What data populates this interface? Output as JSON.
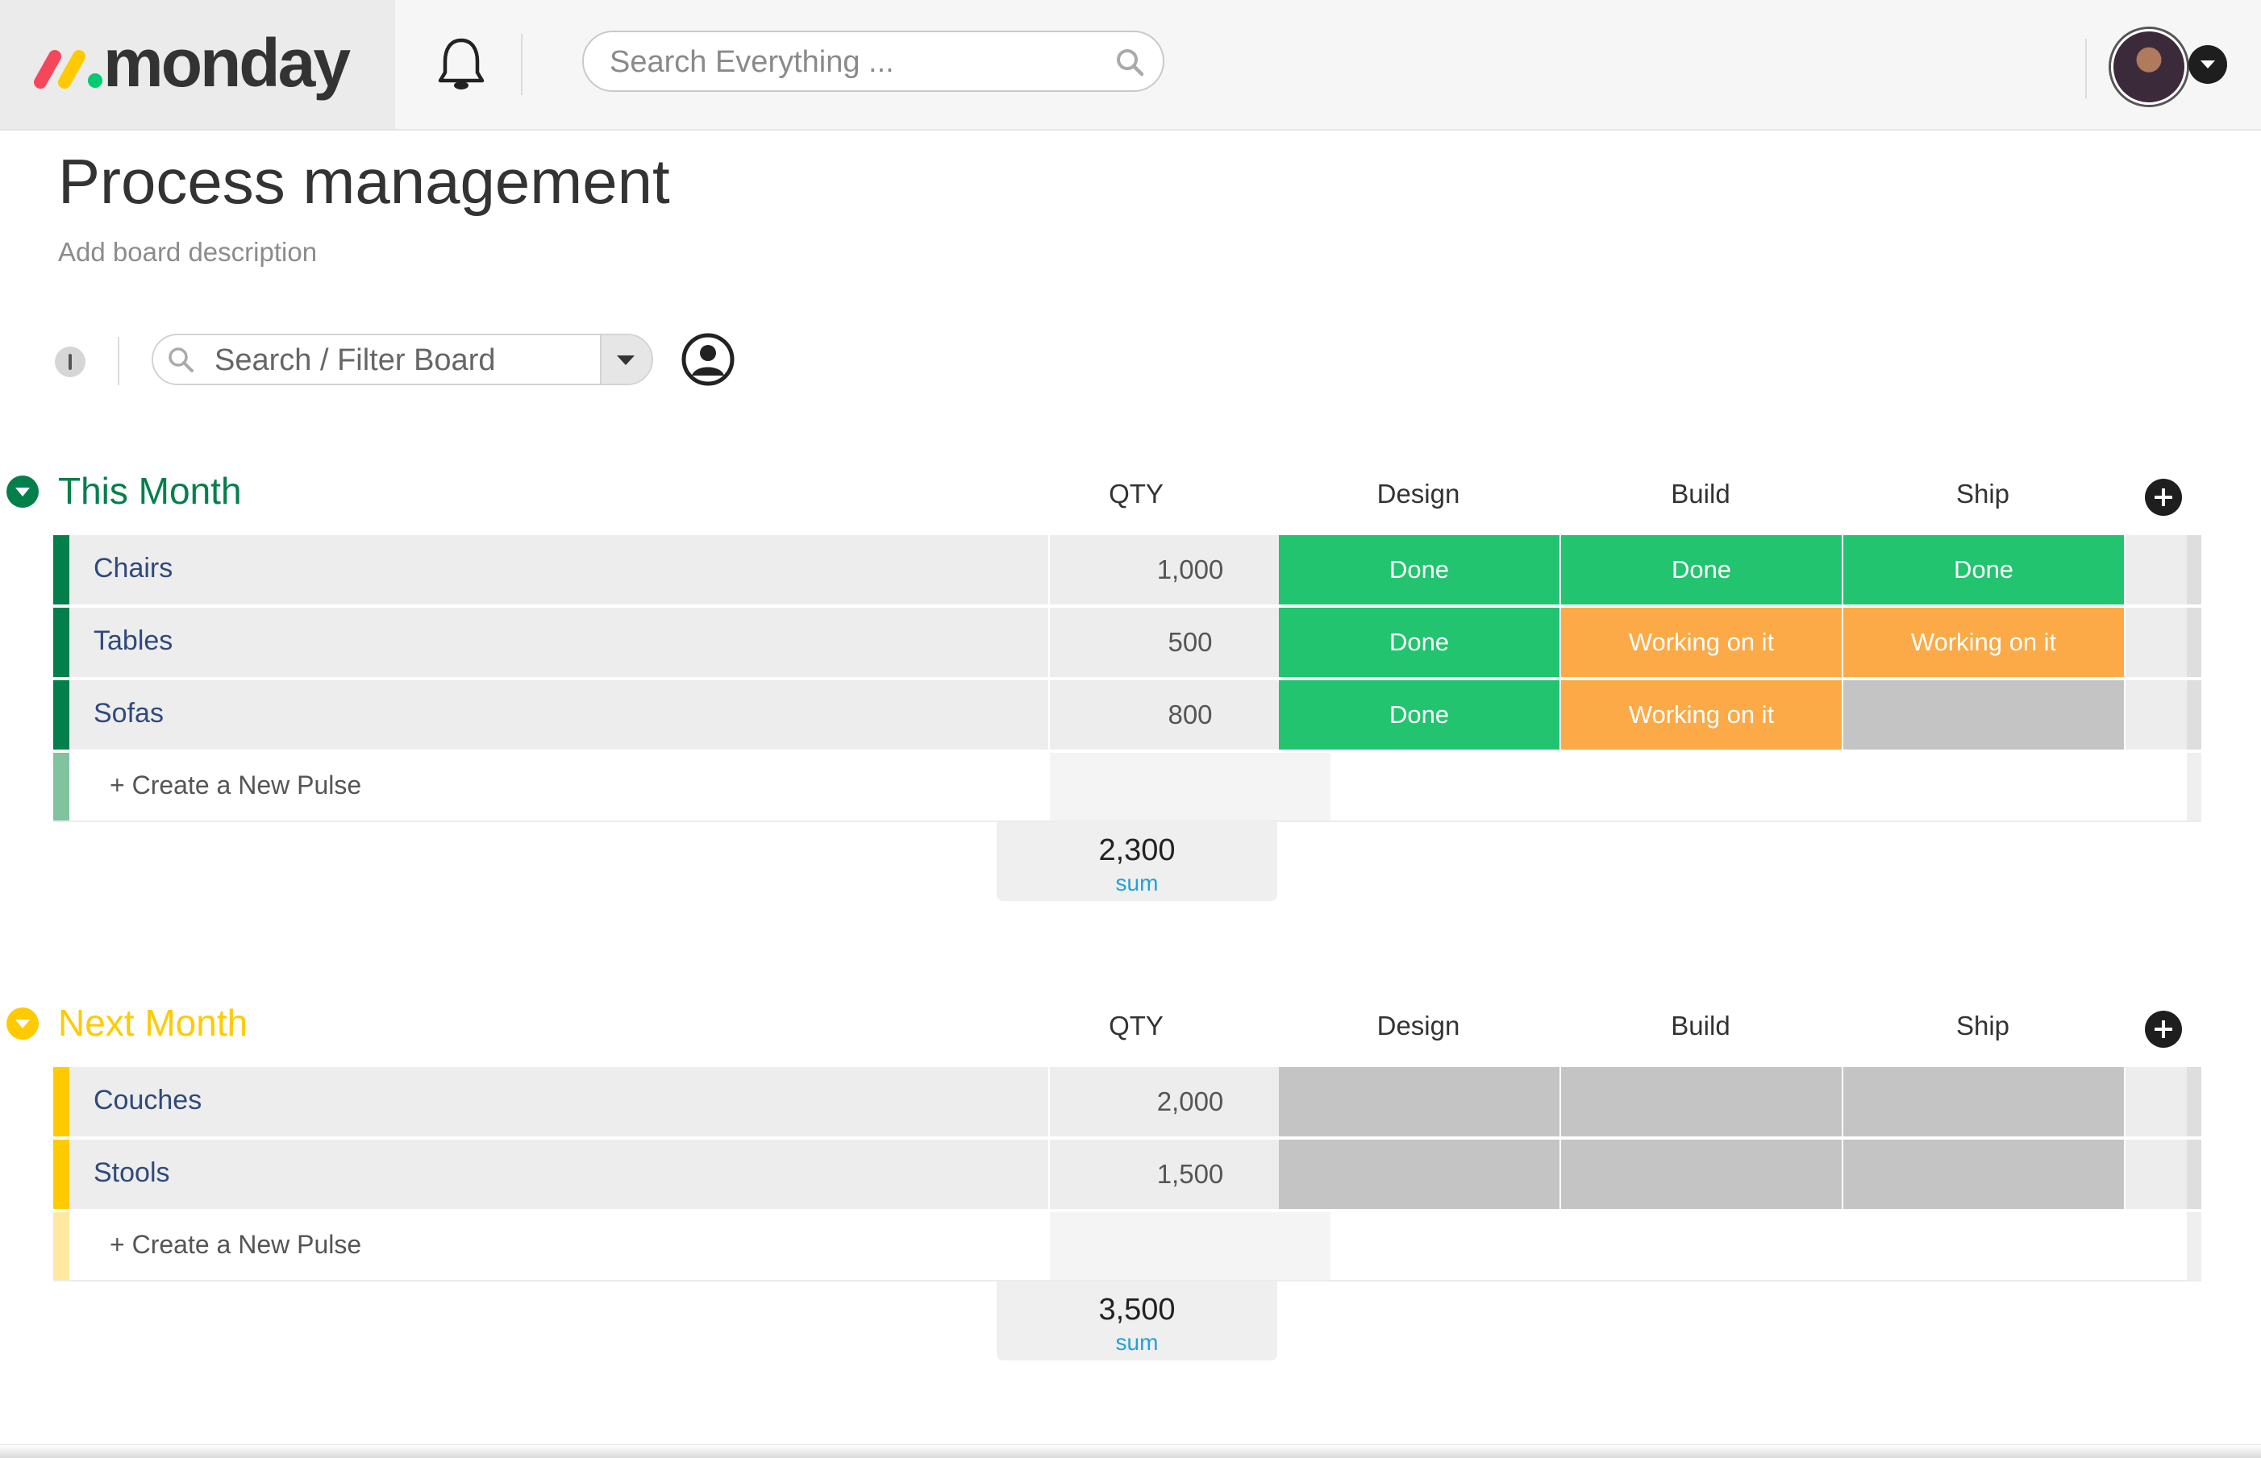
{
  "header": {
    "logo_text": "monday",
    "search_placeholder": "Search Everything ..."
  },
  "board": {
    "title": "Process management",
    "description": "Add board description",
    "filter_placeholder": "Search / Filter Board"
  },
  "colors": {
    "done": "#22c46f",
    "working": "#fbaa47",
    "empty": "#c4c4c4",
    "group_this_month": "#037f4c",
    "group_next_month": "#ffcb00"
  },
  "groups": [
    {
      "title": "This Month",
      "columns": {
        "qty": "QTY",
        "design": "Design",
        "build": "Build",
        "ship": "Ship"
      },
      "rows": [
        {
          "name": "Chairs",
          "qty": "1,000",
          "design": "Done",
          "build": "Done",
          "ship": "Done"
        },
        {
          "name": "Tables",
          "qty": "500",
          "design": "Done",
          "build": "Working on it",
          "ship": "Working on it"
        },
        {
          "name": "Sofas",
          "qty": "800",
          "design": "Done",
          "build": "Working on it",
          "ship": ""
        }
      ],
      "new_pulse": "+ Create a New Pulse",
      "sum_value": "2,300",
      "sum_label": "sum"
    },
    {
      "title": "Next Month",
      "columns": {
        "qty": "QTY",
        "design": "Design",
        "build": "Build",
        "ship": "Ship"
      },
      "rows": [
        {
          "name": "Couches",
          "qty": "2,000",
          "design": "",
          "build": "",
          "ship": ""
        },
        {
          "name": "Stools",
          "qty": "1,500",
          "design": "",
          "build": "",
          "ship": ""
        }
      ],
      "new_pulse": "+ Create a New Pulse",
      "sum_value": "3,500",
      "sum_label": "sum"
    }
  ]
}
